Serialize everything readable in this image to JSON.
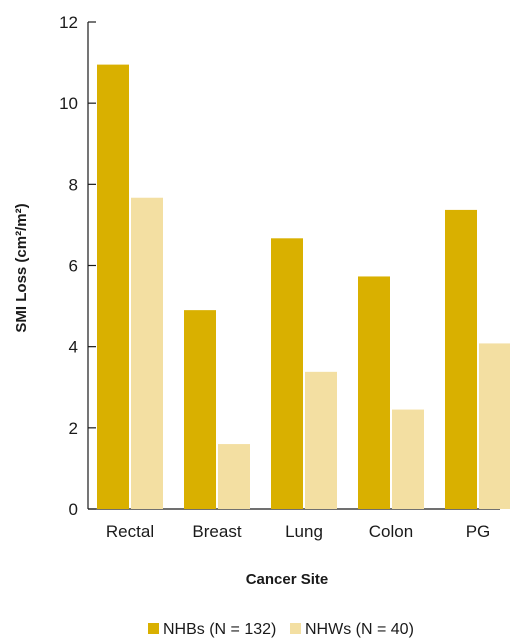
{
  "chart_data": {
    "type": "bar",
    "title": "",
    "xlabel": "Cancer Site",
    "ylabel": "SMI Loss (cm²/m²)",
    "categories": [
      "Rectal",
      "Breast",
      "Lung",
      "Colon",
      "PG"
    ],
    "series": [
      {
        "name": "NHBs (N = 132)",
        "color": "#d9b000",
        "values": [
          10.95,
          4.9,
          6.67,
          5.73,
          7.37
        ]
      },
      {
        "name": "NHWs (N = 40)",
        "color": "#f3dfa2",
        "values": [
          7.67,
          1.6,
          3.38,
          2.45,
          4.08
        ]
      }
    ],
    "ylim": [
      0,
      12
    ],
    "yticks": [
      0,
      2,
      4,
      6,
      8,
      10,
      12
    ],
    "grid": false,
    "legend_position": "bottom-center"
  }
}
